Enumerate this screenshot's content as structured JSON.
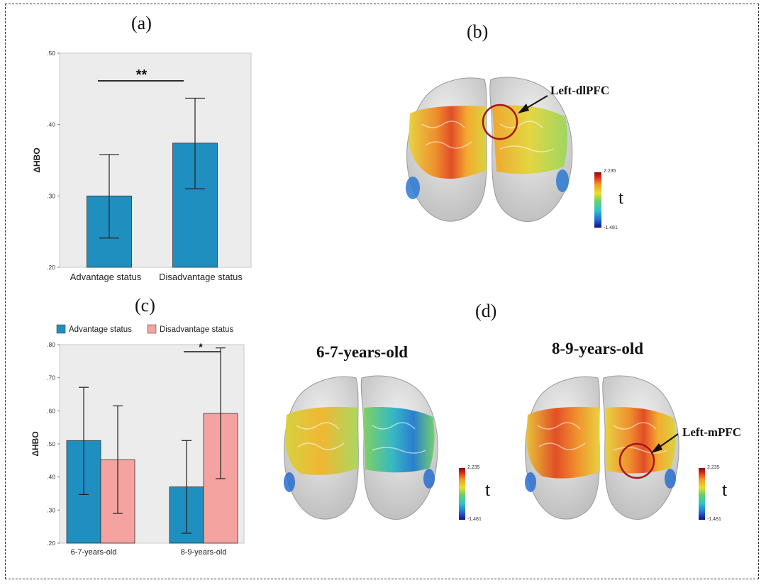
{
  "panels": {
    "a": "(a)",
    "b": "(b)",
    "c": "(c)",
    "d": "(d)"
  },
  "chart_data": [
    {
      "id": "a",
      "type": "bar",
      "categories": [
        "Advantage status",
        "Disadvantage status"
      ],
      "values": [
        0.3,
        0.374
      ],
      "error_low": [
        0.241,
        0.31
      ],
      "error_high": [
        0.358,
        0.437
      ],
      "color": "#1f8fbf",
      "ylabel": "ΔHBO",
      "ylim": [
        0.2,
        0.5
      ],
      "yticks": [
        0.2,
        0.3,
        0.4,
        0.5
      ],
      "ytick_labels": [
        ".20",
        ".30",
        ".40",
        ".50"
      ],
      "significance": {
        "between": [
          0,
          1
        ],
        "label": "**"
      }
    },
    {
      "id": "c",
      "type": "bar",
      "categories": [
        "6-7-years-old",
        "8-9-years-old"
      ],
      "series": [
        {
          "name": "Advantage status",
          "color": "#1f8fbf",
          "values": [
            0.51,
            0.37
          ],
          "error_low": [
            0.347,
            0.23
          ],
          "error_high": [
            0.671,
            0.51
          ]
        },
        {
          "name": "Disadvantage status",
          "color": "#f4a3a0",
          "values": [
            0.452,
            0.592
          ],
          "error_low": [
            0.29,
            0.395
          ],
          "error_high": [
            0.615,
            0.79
          ]
        }
      ],
      "ylabel": "ΔHBO",
      "ylim": [
        0.2,
        0.8
      ],
      "yticks": [
        0.2,
        0.3,
        0.4,
        0.5,
        0.6,
        0.7,
        0.8
      ],
      "ytick_labels": [
        ".20",
        ".30",
        ".40",
        ".50",
        ".60",
        ".70",
        ".80"
      ],
      "legend": [
        "Advantage status",
        "Disadvantage status"
      ],
      "legend_position": "top",
      "significance": {
        "group": 1,
        "label": "*"
      }
    }
  ],
  "brain_maps": {
    "colorbar_max": "2.235",
    "colorbar_min": "-1.481",
    "colorbar_label": "t",
    "b": {
      "annotation": "Left-dlPFC"
    },
    "d_left": {
      "title": "6-7-years-old"
    },
    "d_right": {
      "title": "8-9-years-old",
      "annotation": "Left-mPFC"
    }
  },
  "colors": {
    "advantage": "#1f8fbf",
    "disadvantage": "#f4a3a0",
    "plot_bg": "#ececec",
    "highlight_circle": "#a3161a"
  }
}
